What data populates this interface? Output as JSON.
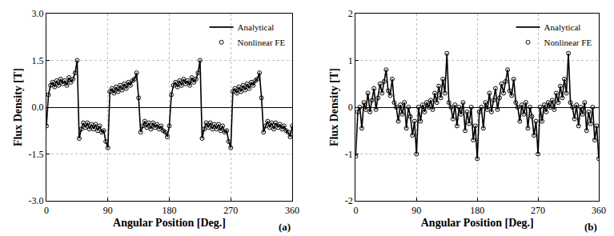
{
  "chart_data": [
    {
      "type": "line",
      "x_label": "Angular Position [Deg.]",
      "y_label": "Flux Density [T]",
      "annotations": [
        "(a)"
      ],
      "x": [
        0,
        3,
        6,
        9,
        12,
        15,
        18,
        21,
        24,
        27,
        30,
        33,
        36,
        39,
        42,
        45,
        48,
        51,
        54,
        57,
        60,
        63,
        66,
        69,
        72,
        75,
        78,
        81,
        84,
        87,
        90,
        93,
        96,
        99,
        102,
        105,
        108,
        111,
        114,
        117,
        120,
        123,
        126,
        129,
        132,
        135,
        138,
        141,
        144,
        147,
        150,
        153,
        156,
        159,
        162,
        165,
        168,
        171,
        174,
        177,
        180,
        183,
        186,
        189,
        192,
        195,
        198,
        201,
        204,
        207,
        210,
        213,
        216,
        219,
        222,
        225,
        228,
        231,
        234,
        237,
        240,
        243,
        246,
        249,
        252,
        255,
        258,
        261,
        264,
        267,
        270,
        273,
        276,
        279,
        282,
        285,
        288,
        291,
        294,
        297,
        300,
        303,
        306,
        309,
        312,
        315,
        318,
        321,
        324,
        327,
        330,
        333,
        336,
        339,
        342,
        345,
        348,
        351,
        354,
        357,
        360
      ],
      "series": [
        {
          "name": "Analytical",
          "color": "#000000",
          "line_style": "solid",
          "marker": "none",
          "values": [
            -0.6,
            0.4,
            0.7,
            0.8,
            0.65,
            0.85,
            0.7,
            0.9,
            0.75,
            0.85,
            0.7,
            0.95,
            0.8,
            0.9,
            1.1,
            1.5,
            -1.0,
            -0.7,
            -0.5,
            -0.65,
            -0.5,
            -0.7,
            -0.55,
            -0.7,
            -0.55,
            -0.75,
            -0.6,
            -0.8,
            -0.75,
            -1.1,
            -1.3,
            0.5,
            0.6,
            0.45,
            0.65,
            0.5,
            0.7,
            0.55,
            0.75,
            0.6,
            0.8,
            0.7,
            0.85,
            0.9,
            1.1,
            0.3,
            -0.8,
            -0.6,
            -0.45,
            -0.65,
            -0.5,
            -0.7,
            -0.5,
            -0.65,
            -0.55,
            -0.7,
            -0.6,
            -0.75,
            -0.8,
            -0.95,
            -0.6,
            0.4,
            0.7,
            0.8,
            0.65,
            0.85,
            0.7,
            0.9,
            0.75,
            0.85,
            0.7,
            0.95,
            0.8,
            0.9,
            1.1,
            1.5,
            -1.0,
            -0.7,
            -0.5,
            -0.65,
            -0.5,
            -0.7,
            -0.55,
            -0.7,
            -0.55,
            -0.75,
            -0.6,
            -0.8,
            -0.75,
            -1.1,
            -1.3,
            0.5,
            0.6,
            0.45,
            0.65,
            0.5,
            0.7,
            0.55,
            0.75,
            0.6,
            0.8,
            0.7,
            0.85,
            0.9,
            1.1,
            0.3,
            -0.8,
            -0.6,
            -0.45,
            -0.65,
            -0.5,
            -0.7,
            -0.5,
            -0.65,
            -0.55,
            -0.7,
            -0.6,
            -0.75,
            -0.8,
            -0.95,
            -0.6
          ]
        },
        {
          "name": "Nonlinear FE",
          "color": "#000000",
          "line_style": "none",
          "marker": "circle-open",
          "values": [
            -0.6,
            0.4,
            0.7,
            0.8,
            0.65,
            0.85,
            0.7,
            0.9,
            0.75,
            0.85,
            0.7,
            0.95,
            0.8,
            0.9,
            1.1,
            1.5,
            -1.0,
            -0.7,
            -0.5,
            -0.65,
            -0.5,
            -0.7,
            -0.55,
            -0.7,
            -0.55,
            -0.75,
            -0.6,
            -0.8,
            -0.75,
            -1.1,
            -1.3,
            0.5,
            0.6,
            0.45,
            0.65,
            0.5,
            0.7,
            0.55,
            0.75,
            0.6,
            0.8,
            0.7,
            0.85,
            0.9,
            1.1,
            0.3,
            -0.8,
            -0.6,
            -0.45,
            -0.65,
            -0.5,
            -0.7,
            -0.5,
            -0.65,
            -0.55,
            -0.7,
            -0.6,
            -0.75,
            -0.8,
            -0.95,
            -0.6,
            0.4,
            0.7,
            0.8,
            0.65,
            0.85,
            0.7,
            0.9,
            0.75,
            0.85,
            0.7,
            0.95,
            0.8,
            0.9,
            1.1,
            1.5,
            -1.0,
            -0.7,
            -0.5,
            -0.65,
            -0.5,
            -0.7,
            -0.55,
            -0.7,
            -0.55,
            -0.75,
            -0.6,
            -0.8,
            -0.75,
            -1.1,
            -1.3,
            0.5,
            0.6,
            0.45,
            0.65,
            0.5,
            0.7,
            0.55,
            0.75,
            0.6,
            0.8,
            0.7,
            0.85,
            0.9,
            1.1,
            0.3,
            -0.8,
            -0.6,
            -0.45,
            -0.65,
            -0.5,
            -0.7,
            -0.5,
            -0.65,
            -0.55,
            -0.7,
            -0.6,
            -0.75,
            -0.8,
            -0.95,
            -0.6
          ]
        }
      ],
      "xlim": [
        0,
        360
      ],
      "xticks": [
        0,
        90,
        180,
        270,
        360
      ],
      "ylim": [
        -3,
        3
      ],
      "yticks": [
        {
          "value": -3,
          "label": "-3.0"
        },
        {
          "value": -1.5,
          "label": "-1.5"
        },
        {
          "value": 0,
          "label": "0.0"
        },
        {
          "value": 1.5,
          "label": "1.5"
        },
        {
          "value": 3,
          "label": "3.0"
        }
      ],
      "grid": true,
      "legend": "upper right"
    },
    {
      "type": "line",
      "x_label": "Angular Position [Deg.]",
      "y_label": "Flux Density [T]",
      "annotations": [
        "(b)"
      ],
      "x": [
        0,
        3,
        6,
        9,
        12,
        15,
        18,
        21,
        24,
        27,
        30,
        33,
        36,
        39,
        42,
        45,
        48,
        51,
        54,
        57,
        60,
        63,
        66,
        69,
        72,
        75,
        78,
        81,
        84,
        87,
        90,
        93,
        96,
        99,
        102,
        105,
        108,
        111,
        114,
        117,
        120,
        123,
        126,
        129,
        132,
        135,
        138,
        141,
        144,
        147,
        150,
        153,
        156,
        159,
        162,
        165,
        168,
        171,
        174,
        177,
        180,
        183,
        186,
        189,
        192,
        195,
        198,
        201,
        204,
        207,
        210,
        213,
        216,
        219,
        222,
        225,
        228,
        231,
        234,
        237,
        240,
        243,
        246,
        249,
        252,
        255,
        258,
        261,
        264,
        267,
        270,
        273,
        276,
        279,
        282,
        285,
        288,
        291,
        294,
        297,
        300,
        303,
        306,
        309,
        312,
        315,
        318,
        321,
        324,
        327,
        330,
        333,
        336,
        339,
        342,
        345,
        348,
        351,
        354,
        357,
        360
      ],
      "series": [
        {
          "name": "Analytical",
          "color": "#000000",
          "line_style": "solid",
          "marker": "none",
          "values": [
            -1.05,
            -0.1,
            0.0,
            -0.45,
            0.1,
            -0.05,
            0.3,
            -0.1,
            0.15,
            0.4,
            -0.05,
            0.2,
            0.5,
            0.3,
            0.55,
            0.8,
            0.35,
            0.25,
            0.6,
            0.1,
            0.0,
            -0.3,
            0.05,
            -0.15,
            0.1,
            -0.45,
            0.0,
            -0.2,
            -0.6,
            -0.3,
            -1.0,
            0.0,
            -0.3,
            0.05,
            -0.1,
            0.1,
            0.0,
            0.15,
            -0.05,
            0.3,
            0.1,
            0.45,
            0.2,
            0.6,
            0.3,
            1.15,
            0.1,
            0.0,
            -0.25,
            0.05,
            -0.4,
            0.0,
            -0.15,
            0.1,
            -0.5,
            -0.1,
            -0.35,
            0.0,
            -0.7,
            -0.4,
            -1.1,
            -0.1,
            0.0,
            -0.45,
            0.1,
            -0.05,
            0.3,
            -0.1,
            0.15,
            0.4,
            -0.05,
            0.2,
            0.5,
            0.3,
            0.55,
            0.8,
            0.35,
            0.25,
            0.6,
            0.1,
            0.0,
            -0.3,
            0.05,
            -0.15,
            0.1,
            -0.45,
            0.0,
            -0.2,
            -0.6,
            -0.3,
            -1.0,
            0.0,
            -0.3,
            0.05,
            -0.1,
            0.1,
            0.0,
            0.15,
            -0.05,
            0.3,
            0.1,
            0.45,
            0.2,
            0.6,
            0.3,
            1.15,
            0.1,
            0.0,
            -0.25,
            0.05,
            -0.4,
            0.0,
            -0.15,
            0.1,
            -0.5,
            -0.1,
            -0.35,
            0.0,
            -0.7,
            -0.4,
            -1.1
          ]
        },
        {
          "name": "Nonlinear FE",
          "color": "#000000",
          "line_style": "none",
          "marker": "circle-open",
          "values": [
            -1.05,
            -0.1,
            0.0,
            -0.45,
            0.1,
            -0.05,
            0.3,
            -0.1,
            0.15,
            0.4,
            -0.05,
            0.2,
            0.5,
            0.3,
            0.55,
            0.8,
            0.35,
            0.25,
            0.6,
            0.1,
            0.0,
            -0.3,
            0.05,
            -0.15,
            0.1,
            -0.45,
            0.0,
            -0.2,
            -0.6,
            -0.3,
            -1.0,
            0.0,
            -0.3,
            0.05,
            -0.1,
            0.1,
            0.0,
            0.15,
            -0.05,
            0.3,
            0.1,
            0.45,
            0.2,
            0.6,
            0.3,
            1.15,
            0.1,
            0.0,
            -0.25,
            0.05,
            -0.4,
            0.0,
            -0.15,
            0.1,
            -0.5,
            -0.1,
            -0.35,
            0.0,
            -0.7,
            -0.4,
            -1.1,
            -0.1,
            0.0,
            -0.45,
            0.1,
            -0.05,
            0.3,
            -0.1,
            0.15,
            0.4,
            -0.05,
            0.2,
            0.5,
            0.3,
            0.55,
            0.8,
            0.35,
            0.25,
            0.6,
            0.1,
            0.0,
            -0.3,
            0.05,
            -0.15,
            0.1,
            -0.45,
            0.0,
            -0.2,
            -0.6,
            -0.3,
            -1.0,
            0.0,
            -0.3,
            0.05,
            -0.1,
            0.1,
            0.0,
            0.15,
            -0.05,
            0.3,
            0.1,
            0.45,
            0.2,
            0.6,
            0.3,
            1.15,
            0.1,
            0.0,
            -0.25,
            0.05,
            -0.4,
            0.0,
            -0.15,
            0.1,
            -0.5,
            -0.1,
            -0.35,
            0.0,
            -0.7,
            -0.4,
            -1.1
          ]
        }
      ],
      "xlim": [
        0,
        360
      ],
      "xticks": [
        0,
        90,
        180,
        270,
        360
      ],
      "ylim": [
        -2,
        2
      ],
      "yticks": [
        -2,
        -1,
        0,
        1,
        2
      ],
      "grid": true,
      "legend": "upper right"
    }
  ]
}
